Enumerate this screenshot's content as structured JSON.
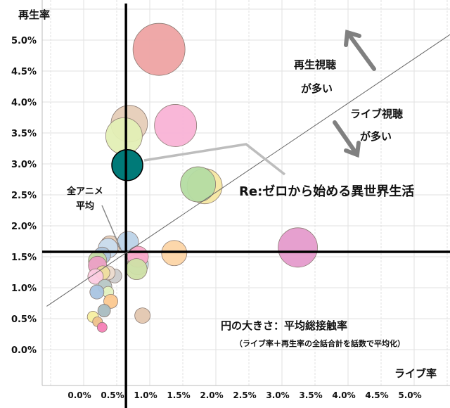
{
  "chart_data": {
    "type": "scatter",
    "subtype": "bubble",
    "xlabel": "ライブ率",
    "ylabel": "再生率",
    "xlim": [
      -0.5,
      5.5
    ],
    "ylim": [
      -0.5,
      5.6
    ],
    "x_ticks": [
      "0.0%",
      "0.5%",
      "1.0%",
      "1.5%",
      "2.0%",
      "2.5%",
      "3.0%",
      "3.5%",
      "4.0%",
      "4.5%",
      "5.0%"
    ],
    "y_ticks": [
      "0.0%",
      "0.5%",
      "1.0%",
      "1.5%",
      "2.0%",
      "2.5%",
      "3.0%",
      "3.5%",
      "4.0%",
      "4.5%",
      "5.0%"
    ],
    "grid": true,
    "average": {
      "x": 0.64,
      "y": 1.58,
      "label": "全アニメ\n平均",
      "label_line1": "全アニメ",
      "label_line2": "平均"
    },
    "reference_line": {
      "from": [
        -0.56,
        0.7
      ],
      "to": [
        5.6,
        5.13
      ]
    },
    "highlight_label": "Re:ゼロから始める異世界生活",
    "annotations": {
      "replay_more_1": "再生視聴",
      "replay_more_2": "が多い",
      "live_more_1": "ライブ視聴",
      "live_more_2": "が多い",
      "size_legend": "円の大きさ：平均総接触率",
      "size_legend_note": "（ライブ率＋再生率の全話合計を話数で平均化）"
    },
    "points": [
      {
        "x": 1.14,
        "y": 4.85,
        "size": 37,
        "color": "#eea3a3"
      },
      {
        "x": 1.39,
        "y": 3.62,
        "size": 30,
        "color": "#f9b3d6"
      },
      {
        "x": 0.69,
        "y": 3.65,
        "size": 26,
        "color": "#e6cdb8"
      },
      {
        "x": 0.61,
        "y": 3.45,
        "size": 26,
        "color": "#e3efb5"
      },
      {
        "x": 0.66,
        "y": 2.98,
        "size": 22,
        "color": "#007a78",
        "name": "Re:ゼロから始める異世界生活"
      },
      {
        "x": 1.83,
        "y": 2.64,
        "size": 25,
        "color": "#f6e7a2"
      },
      {
        "x": 1.73,
        "y": 2.67,
        "size": 25,
        "color": "#b4dca2"
      },
      {
        "x": 3.24,
        "y": 1.65,
        "size": 28,
        "color": "#e59bcc"
      },
      {
        "x": 1.37,
        "y": 1.56,
        "size": 18,
        "color": "#fcd5a6"
      },
      {
        "x": 0.89,
        "y": 0.55,
        "size": 11,
        "color": "#e3c7b0"
      },
      {
        "x": 0.4,
        "y": 1.68,
        "size": 14,
        "color": "#e6cdb8"
      },
      {
        "x": 0.67,
        "y": 1.74,
        "size": 15,
        "color": "#bcd3e8"
      },
      {
        "x": 0.37,
        "y": 1.64,
        "size": 14,
        "color": "#c9dcee"
      },
      {
        "x": 0.28,
        "y": 1.52,
        "size": 12,
        "color": "#adc3db"
      },
      {
        "x": 0.82,
        "y": 1.38,
        "size": 15,
        "color": "#c9dfe8"
      },
      {
        "x": 0.82,
        "y": 1.5,
        "size": 15,
        "color": "#f9a8c9"
      },
      {
        "x": 0.8,
        "y": 1.3,
        "size": 15,
        "color": "#cfe0a6"
      },
      {
        "x": 0.21,
        "y": 1.44,
        "size": 13,
        "color": "#c4dca4"
      },
      {
        "x": 0.21,
        "y": 1.36,
        "size": 13,
        "color": "#ec9fc5"
      },
      {
        "x": 0.47,
        "y": 1.19,
        "size": 10,
        "color": "#cccccc"
      },
      {
        "x": 0.37,
        "y": 1.24,
        "size": 10,
        "color": "#eddccf"
      },
      {
        "x": 0.29,
        "y": 1.24,
        "size": 10,
        "color": "#eedd9e"
      },
      {
        "x": 0.18,
        "y": 1.18,
        "size": 11,
        "color": "#fccbe2"
      },
      {
        "x": 0.32,
        "y": 1.02,
        "size": 10,
        "color": "#b7c7c5"
      },
      {
        "x": 0.37,
        "y": 0.93,
        "size": 8,
        "color": "#e5f3c2"
      },
      {
        "x": 0.2,
        "y": 0.93,
        "size": 10,
        "color": "#a9c4e2"
      },
      {
        "x": 0.41,
        "y": 0.78,
        "size": 10,
        "color": "#fbc890"
      },
      {
        "x": 0.31,
        "y": 0.63,
        "size": 9,
        "color": "#a8bcc0"
      },
      {
        "x": 0.14,
        "y": 0.53,
        "size": 8,
        "color": "#f7efa0"
      },
      {
        "x": 0.21,
        "y": 0.45,
        "size": 7,
        "color": "#efc28c"
      },
      {
        "x": 0.28,
        "y": 0.36,
        "size": 7,
        "color": "#f67fb6"
      }
    ]
  }
}
